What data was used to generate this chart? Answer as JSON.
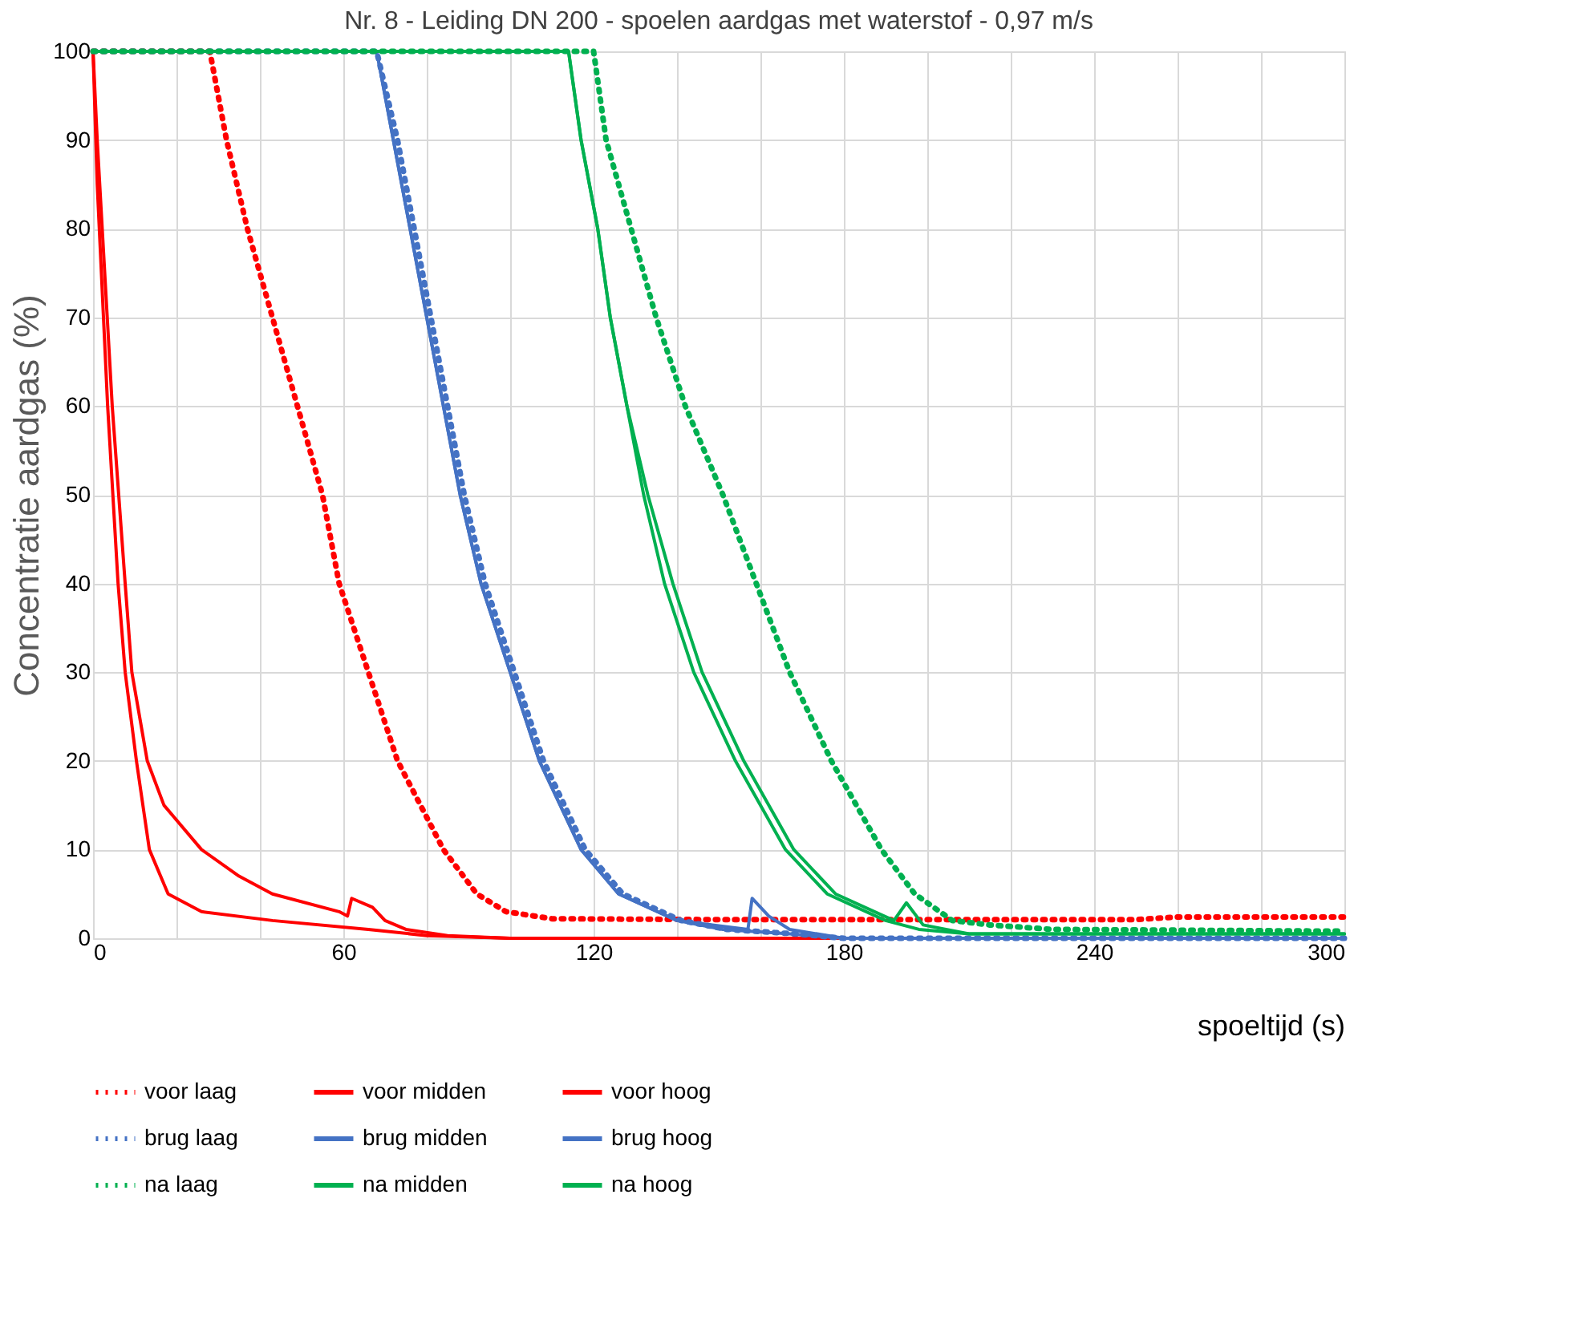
{
  "chart_data": {
    "type": "line",
    "title": "Nr. 8 - Leiding DN 200 - spoelen aardgas met waterstof - 0,97 m/s",
    "xlabel": "spoeltijd (s)",
    "ylabel": "Concentratie aardgas (%)",
    "xlim": [
      0,
      300
    ],
    "ylim": [
      0,
      100
    ],
    "xticks": [
      0,
      {
        "value": 20,
        "label": null
      },
      {
        "value": 40,
        "label": null
      },
      60,
      {
        "value": 80,
        "label": null
      },
      {
        "value": 100,
        "label": null
      },
      120,
      {
        "value": 140,
        "label": null
      },
      {
        "value": 160,
        "label": null
      },
      180,
      {
        "value": 200,
        "label": null
      },
      {
        "value": 220,
        "label": null
      },
      240,
      {
        "value": 260,
        "label": null
      },
      {
        "value": 280,
        "label": null
      },
      300
    ],
    "yticks": [
      0,
      10,
      20,
      30,
      40,
      50,
      60,
      70,
      80,
      90,
      100
    ],
    "grid": true,
    "legend": "bottom",
    "marker": "none",
    "series": [
      {
        "name": "voor laag",
        "color": "#ff0000",
        "line_style": "dotted",
        "x": [
          0,
          28,
          32,
          37,
          43,
          49,
          55,
          59,
          66,
          73,
          84,
          92,
          99,
          110,
          150,
          200,
          250,
          260,
          300
        ],
        "values": [
          100,
          100,
          90,
          80,
          70,
          60,
          50,
          40,
          30,
          20,
          10,
          5,
          3,
          2.2,
          2.1,
          2.1,
          2.1,
          2.4,
          2.4
        ]
      },
      {
        "name": "voor midden",
        "color": "#ff0000",
        "line_style": "solid",
        "x": [
          0,
          1,
          4.6,
          7.7,
          9.3,
          13,
          17,
          26,
          35,
          43,
          59,
          61,
          62,
          67,
          70,
          75,
          85,
          100,
          300
        ],
        "values": [
          100,
          90,
          60,
          40,
          30,
          20,
          15,
          10,
          7,
          5,
          3,
          2.5,
          4.5,
          3.5,
          2,
          1,
          0.3,
          0,
          0
        ]
      },
      {
        "name": "voor hoog",
        "color": "#ff0000",
        "line_style": "solid",
        "x": [
          0,
          1,
          3.5,
          6,
          7.7,
          10.4,
          13.5,
          18,
          26,
          43,
          66,
          80,
          100,
          300
        ],
        "values": [
          100,
          85,
          60,
          40,
          30,
          20,
          10,
          5,
          3,
          2,
          1,
          0.3,
          0,
          0
        ]
      },
      {
        "name": "brug laag",
        "color": "#4472c4",
        "line_style": "dotted",
        "x": [
          0,
          68,
          73,
          77,
          81,
          85,
          89,
          94,
          101,
          108,
          118,
          127,
          141,
          152,
          168,
          180,
          300
        ],
        "values": [
          100,
          100,
          90,
          80,
          70,
          60,
          50,
          40,
          30,
          20,
          10,
          5,
          2,
          1,
          0.5,
          0,
          0
        ]
      },
      {
        "name": "brug midden",
        "color": "#4472c4",
        "line_style": "solid",
        "x": [
          0,
          68,
          72,
          76,
          80,
          84,
          88,
          93,
          100,
          107,
          117,
          126,
          140,
          157,
          158,
          162,
          167,
          180,
          300
        ],
        "values": [
          100,
          100,
          90,
          80,
          70,
          60,
          50,
          40,
          30,
          20,
          10,
          5,
          2,
          1,
          4.5,
          2.5,
          1,
          0,
          0
        ]
      },
      {
        "name": "brug  hoog",
        "color": "#4472c4",
        "line_style": "solid",
        "x": [
          0,
          68,
          72,
          76,
          80,
          84,
          88,
          93,
          100,
          107,
          117,
          126,
          140,
          151,
          167,
          180,
          300
        ],
        "values": [
          100,
          100,
          90,
          80,
          70,
          60,
          50,
          40,
          30,
          20,
          10,
          5,
          2,
          1,
          0.5,
          0,
          0
        ]
      },
      {
        "name": "na laag",
        "color": "#00b050",
        "line_style": "dotted",
        "x": [
          0,
          120,
          123,
          129,
          135,
          142,
          151,
          159,
          167,
          177,
          189,
          197,
          206,
          215,
          230,
          300
        ],
        "values": [
          100,
          100,
          90,
          80,
          70,
          60,
          50,
          40,
          30,
          20,
          10,
          5,
          2,
          1.5,
          1,
          0.8
        ]
      },
      {
        "name": "na midden",
        "color": "#00b050",
        "line_style": "solid",
        "x": [
          0,
          114,
          117,
          121,
          124,
          128,
          133,
          139,
          146,
          156,
          168,
          178,
          192,
          195,
          199,
          210,
          300
        ],
        "values": [
          100,
          100,
          90,
          80,
          70,
          60,
          50,
          40,
          30,
          20,
          10,
          5,
          2,
          4,
          1.5,
          0.5,
          0.5
        ]
      },
      {
        "name": "na hoog",
        "color": "#00b050",
        "line_style": "solid",
        "x": [
          0,
          114,
          117,
          121,
          124,
          128,
          132,
          137,
          144,
          154,
          166,
          176,
          190,
          198,
          210,
          300
        ],
        "values": [
          100,
          100,
          90,
          80,
          70,
          60,
          50,
          40,
          30,
          20,
          10,
          5,
          2,
          1,
          0.5,
          0.5
        ]
      }
    ]
  }
}
